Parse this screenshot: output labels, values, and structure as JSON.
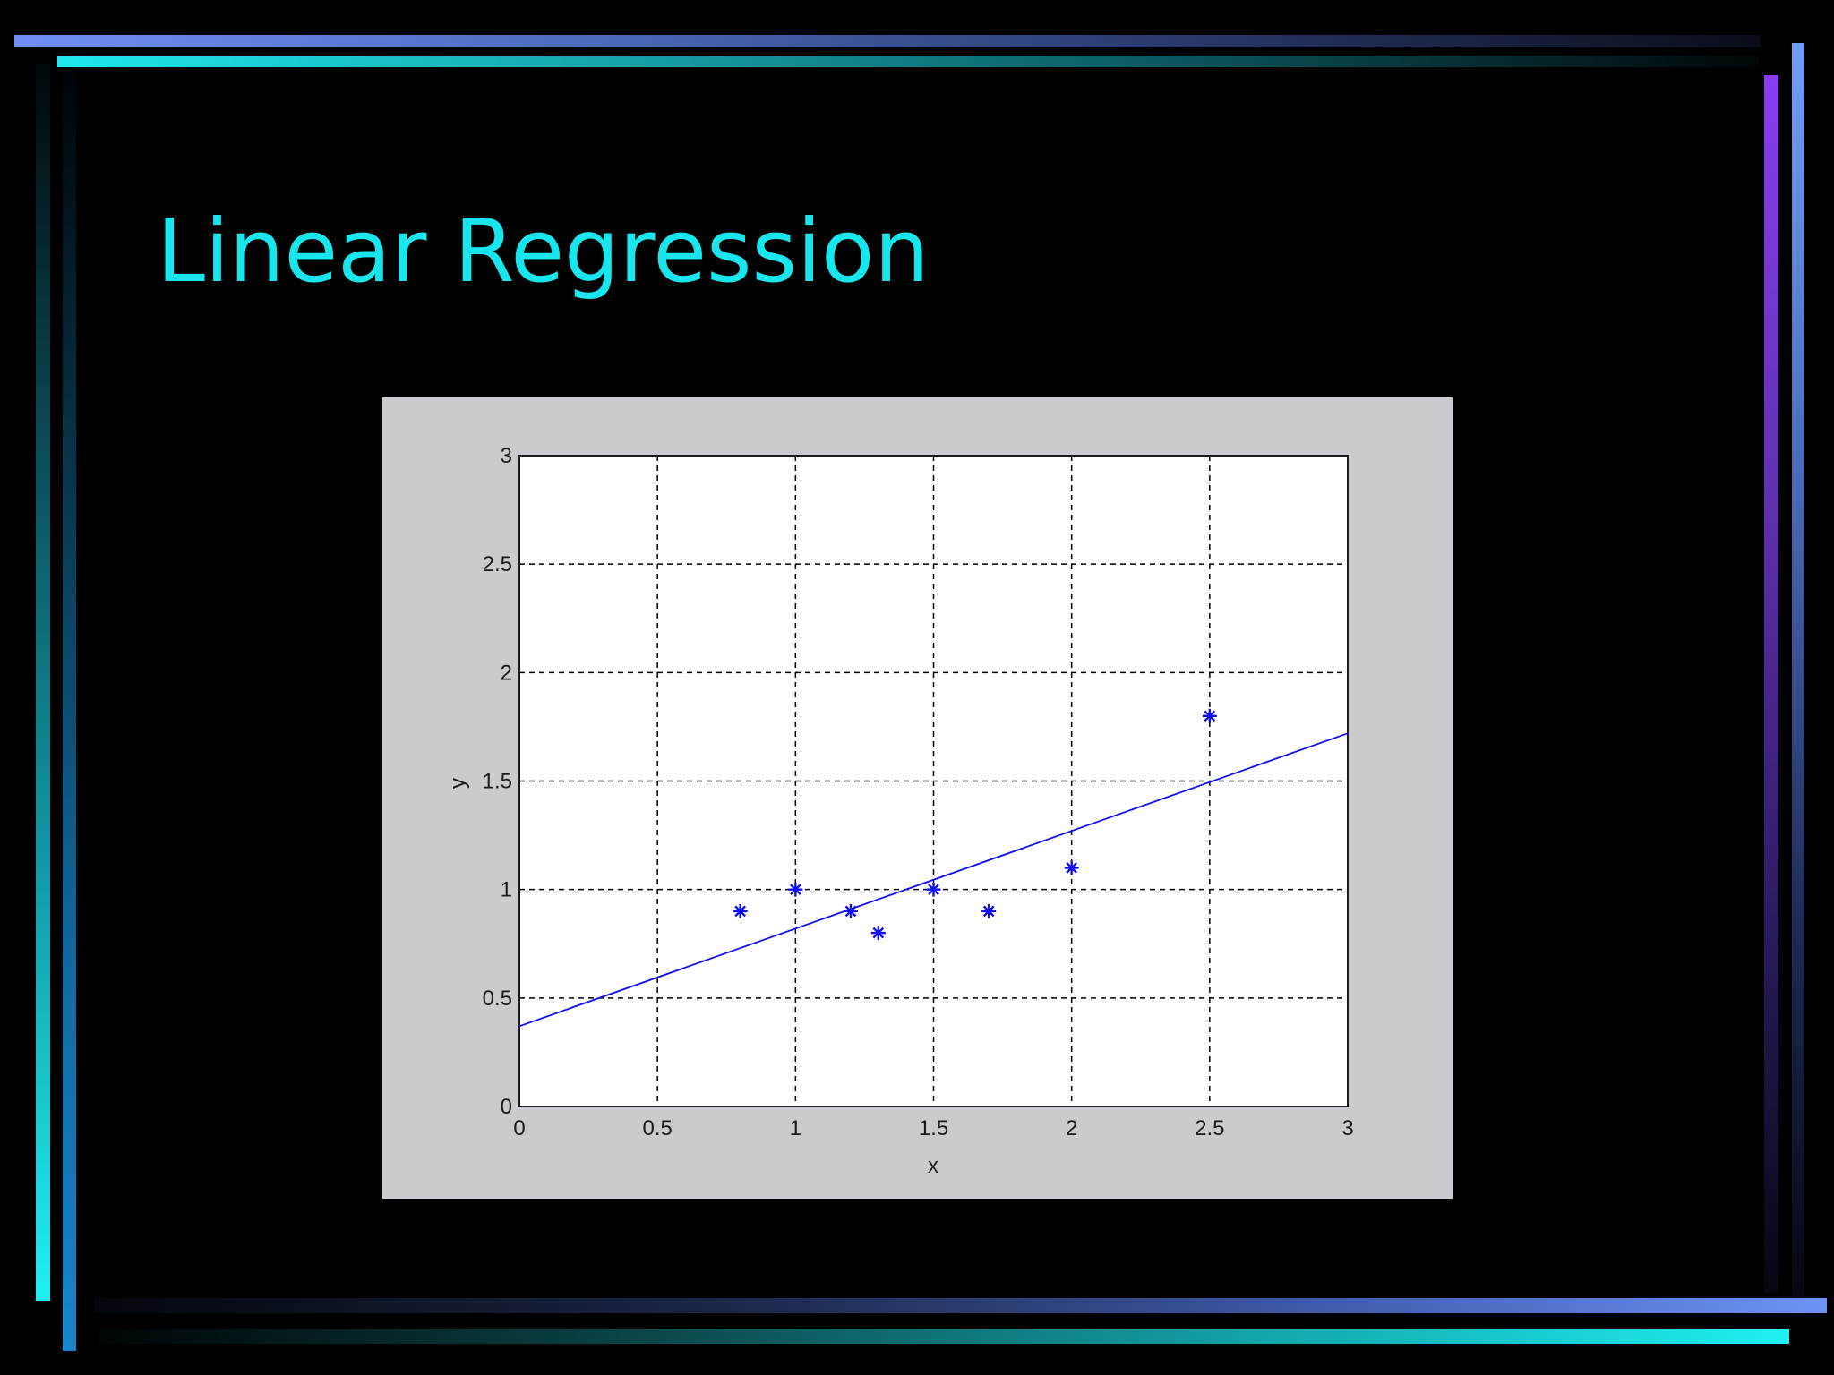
{
  "slide": {
    "title": "Linear Regression"
  },
  "colors": {
    "title": "#19e6ec",
    "figure_background": "#cdcacf",
    "series": "#1010ee"
  },
  "chart_data": {
    "type": "scatter",
    "title": "",
    "xlabel": "x",
    "ylabel": "y",
    "xlim": [
      0,
      3
    ],
    "ylim": [
      0,
      3
    ],
    "xticks": [
      0,
      0.5,
      1,
      1.5,
      2,
      2.5,
      3
    ],
    "yticks": [
      0,
      0.5,
      1,
      1.5,
      2,
      2.5,
      3
    ],
    "xtick_labels": [
      "0",
      "0.5",
      "1",
      "1.5",
      "2",
      "2.5",
      "3"
    ],
    "ytick_labels": [
      "0",
      "0.5",
      "1",
      "1.5",
      "2",
      "2.5",
      "3"
    ],
    "grid": "dashed",
    "legend": "none",
    "marker": "asterisk",
    "points": [
      {
        "x": 0.8,
        "y": 0.9
      },
      {
        "x": 1.0,
        "y": 1.0
      },
      {
        "x": 1.2,
        "y": 0.9
      },
      {
        "x": 1.3,
        "y": 0.8
      },
      {
        "x": 1.5,
        "y": 1.0
      },
      {
        "x": 1.7,
        "y": 0.9
      },
      {
        "x": 2.0,
        "y": 1.1
      },
      {
        "x": 2.5,
        "y": 1.8
      }
    ],
    "fit_line": {
      "x": [
        0,
        3
      ],
      "y": [
        0.37,
        1.72
      ]
    }
  }
}
